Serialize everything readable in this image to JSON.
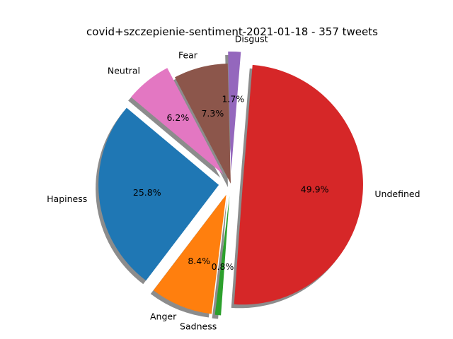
{
  "chart_data": {
    "type": "pie",
    "title": "covid+szczepienie-sentiment-2021-01-18 - 357 tweets",
    "start_angle_deg": 140,
    "direction": "counterclockwise",
    "shadow": true,
    "slices": [
      {
        "label": "Hapiness",
        "value": 25.8,
        "pct_label": "25.8%",
        "color": "#1f77b4",
        "exploded": true
      },
      {
        "label": "Anger",
        "value": 8.4,
        "pct_label": "8.4%",
        "color": "#ff7f0e",
        "exploded": true
      },
      {
        "label": "Sadness",
        "value": 0.8,
        "pct_label": "0.8%",
        "color": "#2ca02c",
        "exploded": true
      },
      {
        "label": "Undefined",
        "value": 49.9,
        "pct_label": "49.9%",
        "color": "#d62728",
        "exploded": true
      },
      {
        "label": "Disgust",
        "value": 1.7,
        "pct_label": "1.7%",
        "color": "#9467bd",
        "exploded": true
      },
      {
        "label": "Fear",
        "value": 7.3,
        "pct_label": "7.3%",
        "color": "#8c564b",
        "exploded": false
      },
      {
        "label": "Neutral",
        "value": 6.2,
        "pct_label": "6.2%",
        "color": "#e377c2",
        "exploded": true
      }
    ]
  }
}
